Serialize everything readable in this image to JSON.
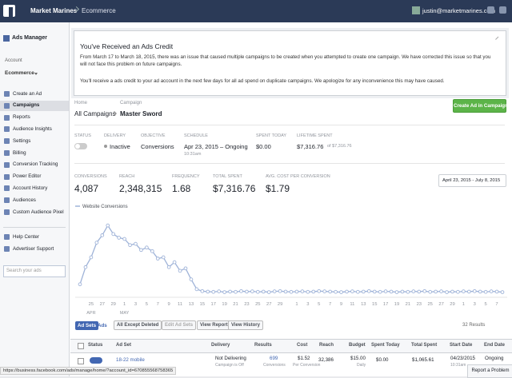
{
  "header": {
    "account": "Market Marines",
    "section": "Ecommerce",
    "user": "justin@marketmarines.com"
  },
  "sidebar": {
    "title": "Ads Manager",
    "account_label": "Account",
    "account": "Ecommerce",
    "nav": [
      "Create an Ad",
      "Campaigns",
      "Reports",
      "Audience Insights",
      "Settings",
      "Billing",
      "Conversion Tracking",
      "Power Editor",
      "Account History",
      "Audiences",
      "Custom Audience Pixel"
    ],
    "help": [
      "Help Center",
      "Advertiser Support"
    ],
    "search_placeholder": "Search your ads"
  },
  "notice": {
    "title": "You've Received an Ads Credit",
    "paragraphs": [
      "From March 17 to March 18, 2015, there was an issue that caused multiple campaigns to be created when you attempted to create one campaign. We have corrected this issue so that you will not face this problem on future campaigns.",
      "You'll receive a ads credit to your ad account in the next few days for all ad spend on duplicate campaigns. We apologize for any inconvenience this may have caused."
    ]
  },
  "breadcrumb": {
    "home_label": "Home",
    "home": "All Campaigns",
    "campaign_label": "Campaign",
    "campaign": "Master Sword"
  },
  "create_button": "Create Ad in Campaign",
  "summary": [
    {
      "label": "STATUS"
    },
    {
      "label": "DELIVERY",
      "value": "Inactive"
    },
    {
      "label": "OBJECTIVE",
      "value": "Conversions"
    },
    {
      "label": "SCHEDULE",
      "value": "Apr 23, 2015 – Ongoing",
      "note": "10:31am"
    },
    {
      "label": "SPENT TODAY",
      "value": "$0.00"
    },
    {
      "label": "LIFETIME SPENT",
      "value": "$7,316.76",
      "note": "of $7,316.76"
    }
  ],
  "metrics": [
    {
      "label": "CONVERSIONS",
      "value": "4,087"
    },
    {
      "label": "REACH",
      "value": "2,348,315"
    },
    {
      "label": "FREQUENCY",
      "value": "1.68"
    },
    {
      "label": "TOTAL SPENT",
      "value": "$7,316.76"
    },
    {
      "label": "AVG. COST PER CONVERSION",
      "value": "$1.79"
    }
  ],
  "date_range": "April 23, 2015 - July 8, 2015",
  "chart_data": {
    "type": "line",
    "ylim": [
      0,
      300
    ],
    "months": [
      "APR",
      "MAY"
    ],
    "categories": [
      null,
      null,
      "25",
      null,
      "27",
      null,
      "29",
      null,
      "1",
      null,
      "3",
      null,
      "5",
      null,
      "7",
      null,
      "9",
      null,
      "11",
      null,
      "13",
      null,
      "15",
      null,
      "17",
      null,
      "19",
      null,
      "21",
      null,
      "23",
      null,
      "25",
      null,
      "27",
      null,
      "29",
      null,
      null,
      "1",
      null,
      "3",
      null,
      "5",
      null,
      "7",
      null,
      "9",
      null,
      "11",
      null,
      "13",
      null,
      "15",
      null,
      "17",
      null,
      "19",
      null,
      "21",
      null,
      "23",
      null,
      "25",
      null,
      "27",
      null,
      "29",
      null,
      "1",
      null,
      "3",
      null,
      "5",
      null,
      "7",
      null
    ],
    "series": [
      {
        "name": "Website Conversions",
        "color": "#9fb3d8",
        "values": [
          40,
          110,
          150,
          210,
          240,
          280,
          245,
          230,
          225,
          200,
          205,
          180,
          190,
          175,
          145,
          150,
          110,
          130,
          95,
          105,
          60,
          20,
          12,
          10,
          9,
          11,
          8,
          10,
          9,
          12,
          10,
          11,
          9,
          10,
          8,
          11,
          12,
          10,
          9,
          10,
          11,
          9,
          10,
          12,
          11,
          10,
          9,
          8,
          10,
          11,
          9,
          10,
          12,
          10,
          9,
          11,
          10,
          8,
          10,
          9,
          11,
          10,
          12,
          9,
          10,
          11,
          8,
          10,
          9,
          11,
          10,
          12,
          10,
          9,
          11,
          10,
          8
        ]
      }
    ]
  },
  "toolbar": {
    "tabs": [
      "Ad Sets",
      "Ads"
    ],
    "filter": "All Except Deleted",
    "edit": "Edit Ad Sets",
    "buttons": [
      "View Report",
      "View History"
    ],
    "results": "32 Results"
  },
  "table": {
    "columns": [
      "Status",
      "Ad Set",
      "Delivery",
      "Results",
      "Cost",
      "Reach",
      "Budget",
      "Spent Today",
      "Total Spent",
      "Start Date",
      "End Date"
    ],
    "rows": [
      {
        "ad_set": "18-22 mobile",
        "delivery": "Not Delivering",
        "delivery_note": "Campaign is Off",
        "results": "699",
        "results_note": "Conversions",
        "cost": "$1.52",
        "cost_note": "Per Conversion",
        "reach": "32,386",
        "budget": "$15.00",
        "budget_note": "Daily",
        "spent_today": "$0.00",
        "total_spent": "$1,065.61",
        "start_date": "04/23/2015",
        "start_time": "10:31am",
        "end_date": "Ongoing"
      }
    ]
  },
  "status_url": "https://business.facebook.com/ads/manage/home/?account_id=670855568758365",
  "report": "Report a Problem"
}
